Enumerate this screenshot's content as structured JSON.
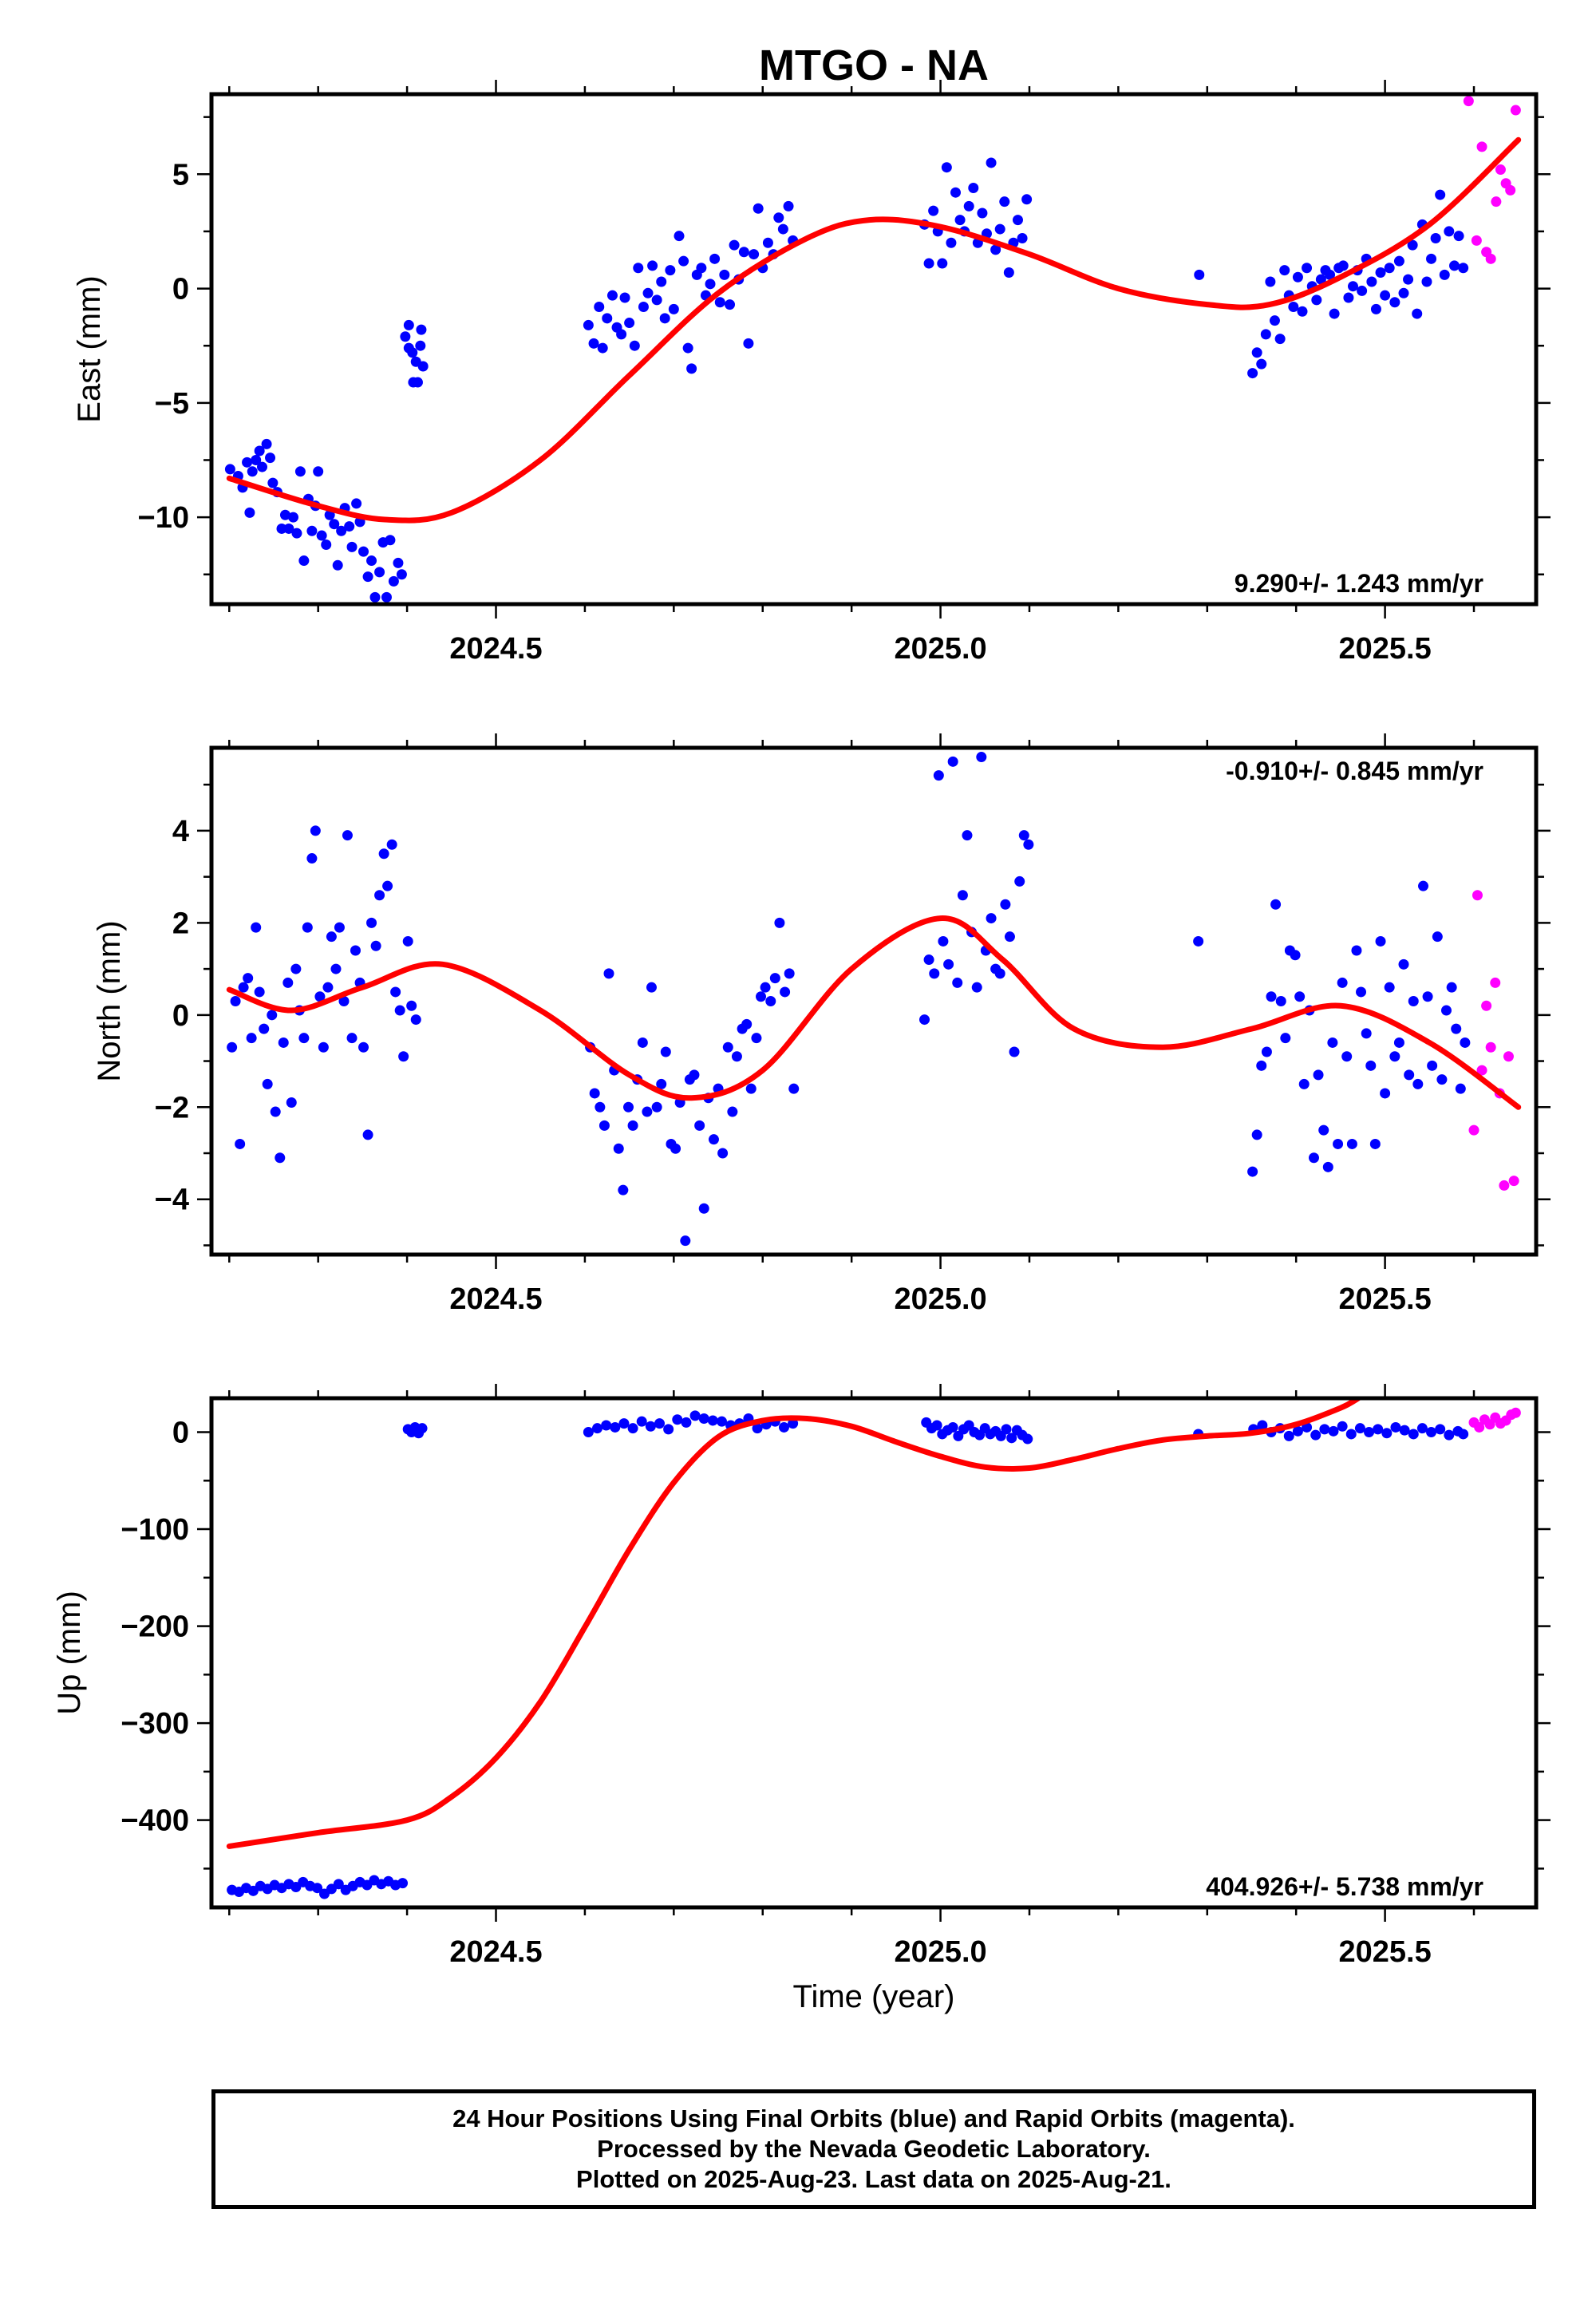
{
  "title": "MTGO - NA",
  "xlabel": "Time (year)",
  "footer": {
    "line1": "24 Hour Positions Using Final Orbits (blue) and Rapid Orbits (magenta).",
    "line2": "Processed by the Nevada Geodetic Laboratory.",
    "line3": "Plotted on 2025-Aug-23. Last data on 2025-Aug-21."
  },
  "colors": {
    "final": "#0000ff",
    "rapid": "#ff00ff",
    "fit": "#ff0000"
  },
  "chart_data": [
    {
      "type": "scatter",
      "name": "east",
      "ylabel": "East (mm)",
      "rate_text": "9.290+/- 1.243 mm/yr",
      "xlim": [
        2024.18,
        2025.67
      ],
      "ylim": [
        -13.8,
        8.5
      ],
      "xticks": [
        2024.5,
        2025.0,
        2025.5
      ],
      "xticklabels": [
        "2024.5",
        "2025.0",
        "2025.5"
      ],
      "yticks": [
        5,
        0,
        -5,
        -10
      ],
      "yticklabels": [
        "5",
        "0",
        "−5",
        "−10"
      ],
      "fit": {
        "x": [
          2024.2,
          2024.3,
          2024.375,
          2024.45,
          2024.55,
          2024.65,
          2024.75,
          2024.85,
          2024.92,
          2025.0,
          2025.1,
          2025.2,
          2025.3,
          2025.37,
          2025.45,
          2025.55,
          2025.65
        ],
        "y": [
          -8.3,
          -9.5,
          -10.1,
          -9.8,
          -7.5,
          -3.8,
          -0.2,
          2.2,
          3.0,
          2.7,
          1.5,
          0.0,
          -0.7,
          -0.7,
          0.5,
          2.8,
          6.5
        ]
      },
      "final_x": [
        2024.201,
        2024.21,
        2024.215,
        2024.22,
        2024.223,
        2024.226,
        2024.23,
        2024.234,
        2024.237,
        2024.242,
        2024.246,
        2024.249,
        2024.254,
        2024.259,
        2024.263,
        2024.267,
        2024.272,
        2024.276,
        2024.28,
        2024.284,
        2024.289,
        2024.293,
        2024.297,
        2024.3,
        2024.304,
        2024.309,
        2024.313,
        2024.318,
        2024.322,
        2024.326,
        2024.33,
        2024.335,
        2024.338,
        2024.343,
        2024.347,
        2024.351,
        2024.356,
        2024.36,
        2024.364,
        2024.369,
        2024.373,
        2024.377,
        2024.381,
        2024.385,
        2024.39,
        2024.394,
        2024.398,
        2024.402,
        2024.406,
        2024.41,
        2024.415,
        2024.418,
        2024.402,
        2024.407,
        2024.412,
        2024.416,
        2024.604,
        2024.61,
        2024.616,
        2024.62,
        2024.625,
        2024.631,
        2024.636,
        2024.641,
        2024.645,
        2024.65,
        2024.656,
        2024.66,
        2024.666,
        2024.671,
        2024.676,
        2024.681,
        2024.686,
        2024.69,
        2024.696,
        2024.7,
        2024.706,
        2024.711,
        2024.716,
        2024.72,
        2024.726,
        2024.731,
        2024.736,
        2024.741,
        2024.746,
        2024.752,
        2024.757,
        2024.763,
        2024.768,
        2024.773,
        2024.779,
        2024.784,
        2024.79,
        2024.795,
        2024.8,
        2024.806,
        2024.812,
        2024.818,
        2024.823,
        2024.829,
        2024.834,
        2024.982,
        2024.987,
        2024.992,
        2024.997,
        2025.002,
        2025.007,
        2025.012,
        2025.017,
        2025.022,
        2025.027,
        2025.032,
        2025.037,
        2025.042,
        2025.047,
        2025.052,
        2025.057,
        2025.062,
        2025.067,
        2025.072,
        2025.077,
        2025.082,
        2025.087,
        2025.092,
        2025.097,
        2025.291,
        2025.351,
        2025.356,
        2025.361,
        2025.366,
        2025.371,
        2025.376,
        2025.382,
        2025.387,
        2025.392,
        2025.397,
        2025.402,
        2025.407,
        2025.412,
        2025.418,
        2025.423,
        2025.428,
        2025.433,
        2025.438,
        2025.443,
        2025.448,
        2025.453,
        2025.459,
        2025.464,
        2025.469,
        2025.474,
        2025.479,
        2025.485,
        2025.49,
        2025.495,
        2025.5,
        2025.505,
        2025.511,
        2025.516,
        2025.521,
        2025.526,
        2025.531,
        2025.536,
        2025.542,
        2025.547,
        2025.552,
        2025.557,
        2025.562,
        2025.567,
        2025.572,
        2025.578,
        2025.583,
        2025.588
      ],
      "final_y": [
        -7.9,
        -8.2,
        -8.7,
        -7.6,
        -9.8,
        -8.0,
        -7.5,
        -7.1,
        -7.8,
        -6.8,
        -7.4,
        -8.5,
        -8.9,
        -10.5,
        -9.9,
        -10.5,
        -10.0,
        -10.7,
        -8.0,
        -11.9,
        -9.2,
        -10.6,
        -9.5,
        -8.0,
        -10.8,
        -11.2,
        -9.9,
        -10.3,
        -12.1,
        -10.6,
        -9.6,
        -10.4,
        -11.3,
        -9.4,
        -10.2,
        -11.5,
        -12.6,
        -11.9,
        -13.5,
        -12.4,
        -11.1,
        -13.5,
        -11.0,
        -12.8,
        -12.0,
        -12.5,
        -2.1,
        -1.6,
        -2.8,
        -3.2,
        -2.5,
        -3.4,
        -2.6,
        -4.1,
        -4.1,
        -1.8,
        -1.6,
        -2.4,
        -0.8,
        -2.6,
        -1.3,
        -0.3,
        -1.7,
        -2.0,
        -0.4,
        -1.5,
        -2.5,
        0.9,
        -0.8,
        -0.2,
        1.0,
        -0.5,
        0.3,
        -1.3,
        0.8,
        -0.9,
        2.3,
        1.2,
        -2.6,
        -3.5,
        0.6,
        0.9,
        -0.3,
        0.2,
        1.3,
        -0.6,
        0.6,
        -0.7,
        1.9,
        0.4,
        1.6,
        -2.4,
        1.5,
        3.5,
        0.9,
        2.0,
        1.5,
        3.1,
        2.6,
        3.6,
        2.1,
        2.8,
        1.1,
        3.4,
        2.5,
        1.1,
        5.3,
        2.0,
        4.2,
        3.0,
        2.5,
        3.6,
        4.4,
        2.0,
        3.3,
        2.4,
        5.5,
        1.7,
        2.6,
        3.8,
        0.7,
        2.0,
        3.0,
        2.2,
        3.9,
        0.6,
        -3.7,
        -2.8,
        -3.3,
        -2.0,
        0.3,
        -1.4,
        -2.2,
        0.8,
        -0.3,
        -0.8,
        0.5,
        -1.0,
        0.9,
        0.1,
        -0.5,
        0.4,
        0.8,
        0.6,
        -1.1,
        0.9,
        1.0,
        -0.4,
        0.1,
        0.8,
        -0.1,
        1.3,
        0.3,
        -0.9,
        0.7,
        -0.3,
        0.9,
        -0.6,
        1.2,
        -0.2,
        0.4,
        1.9,
        -1.1,
        2.8,
        0.3,
        1.3,
        2.2,
        4.1,
        0.6,
        2.5,
        1.0,
        2.3,
        0.9,
        2.4
      ],
      "rapid_x": [
        2025.594,
        2025.603,
        2025.609,
        2025.614,
        2025.619,
        2025.625,
        2025.63,
        2025.636,
        2025.641,
        2025.647
      ],
      "rapid_y": [
        8.2,
        2.1,
        6.2,
        1.6,
        1.3,
        3.8,
        5.2,
        4.6,
        4.3,
        7.8
      ]
    },
    {
      "type": "scatter",
      "name": "north",
      "ylabel": "North (mm)",
      "rate_text": "-0.910+/- 0.845 mm/yr",
      "xlim": [
        2024.18,
        2025.67
      ],
      "ylim": [
        -5.2,
        5.8
      ],
      "xticks": [
        2024.5,
        2025.0,
        2025.5
      ],
      "xticklabels": [
        "2024.5",
        "2025.0",
        "2025.5"
      ],
      "yticks": [
        4,
        2,
        0,
        -2,
        -4
      ],
      "yticklabels": [
        "4",
        "2",
        "0",
        "−2",
        "−4"
      ],
      "fit": {
        "x": [
          2024.2,
          2024.27,
          2024.35,
          2024.44,
          2024.55,
          2024.65,
          2024.72,
          2024.8,
          2024.9,
          2025.0,
          2025.07,
          2025.15,
          2025.25,
          2025.35,
          2025.45,
          2025.55,
          2025.65
        ],
        "y": [
          0.55,
          0.1,
          0.6,
          1.1,
          0.1,
          -1.3,
          -1.8,
          -1.2,
          1.0,
          2.1,
          1.2,
          -0.3,
          -0.7,
          -0.3,
          0.2,
          -0.6,
          -2.0
        ]
      },
      "final_x": [
        2024.203,
        2024.207,
        2024.212,
        2024.216,
        2024.221,
        2024.225,
        2024.23,
        2024.234,
        2024.239,
        2024.243,
        2024.248,
        2024.252,
        2024.257,
        2024.261,
        2024.266,
        2024.27,
        2024.275,
        2024.279,
        2024.284,
        2024.288,
        2024.293,
        2024.297,
        2024.302,
        2024.306,
        2024.311,
        2024.315,
        2024.32,
        2024.324,
        2024.329,
        2024.333,
        2024.338,
        2024.342,
        2024.347,
        2024.351,
        2024.356,
        2024.36,
        2024.365,
        2024.369,
        2024.374,
        2024.378,
        2024.383,
        2024.387,
        2024.392,
        2024.396,
        2024.401,
        2024.405,
        2024.41,
        2024.606,
        2024.611,
        2024.617,
        2024.622,
        2024.627,
        2024.633,
        2024.638,
        2024.643,
        2024.649,
        2024.654,
        2024.659,
        2024.665,
        2024.67,
        2024.675,
        2024.681,
        2024.686,
        2024.691,
        2024.697,
        2024.702,
        2024.707,
        2024.713,
        2024.718,
        2024.723,
        2024.729,
        2024.734,
        2024.739,
        2024.745,
        2024.75,
        2024.755,
        2024.761,
        2024.766,
        2024.771,
        2024.777,
        2024.782,
        2024.787,
        2024.793,
        2024.798,
        2024.803,
        2024.809,
        2024.814,
        2024.819,
        2024.825,
        2024.83,
        2024.835,
        2024.982,
        2024.987,
        2024.993,
        2024.998,
        2025.003,
        2025.009,
        2025.014,
        2025.019,
        2025.025,
        2025.03,
        2025.035,
        2025.041,
        2025.046,
        2025.051,
        2025.057,
        2025.062,
        2025.067,
        2025.073,
        2025.078,
        2025.083,
        2025.089,
        2025.094,
        2025.099,
        2025.29,
        2025.351,
        2025.356,
        2025.361,
        2025.367,
        2025.372,
        2025.377,
        2025.383,
        2025.388,
        2025.393,
        2025.399,
        2025.404,
        2025.409,
        2025.415,
        2025.42,
        2025.425,
        2025.431,
        2025.436,
        2025.441,
        2025.447,
        2025.452,
        2025.457,
        2025.463,
        2025.468,
        2025.473,
        2025.479,
        2025.484,
        2025.489,
        2025.495,
        2025.5,
        2025.505,
        2025.511,
        2025.516,
        2025.521,
        2025.527,
        2025.532,
        2025.537,
        2025.543,
        2025.548,
        2025.553,
        2025.559,
        2025.564,
        2025.569,
        2025.575,
        2025.58,
        2025.585,
        2025.59
      ],
      "final_y": [
        -0.7,
        0.3,
        -2.8,
        0.6,
        0.8,
        -0.5,
        1.9,
        0.5,
        -0.3,
        -1.5,
        0.0,
        -2.1,
        -3.1,
        -0.6,
        0.7,
        -1.9,
        1.0,
        0.1,
        -0.5,
        1.9,
        3.4,
        4.0,
        0.4,
        -0.7,
        0.6,
        1.7,
        1.0,
        1.9,
        0.3,
        3.9,
        -0.5,
        1.4,
        0.7,
        -0.7,
        -2.6,
        2.0,
        1.5,
        2.6,
        3.5,
        2.8,
        3.7,
        0.5,
        0.1,
        -0.9,
        1.6,
        0.2,
        -0.1,
        -0.7,
        -1.7,
        -2.0,
        -2.4,
        0.9,
        -1.2,
        -2.9,
        -3.8,
        -2.0,
        -2.4,
        -1.4,
        -0.6,
        -2.1,
        0.6,
        -2.0,
        -1.5,
        -0.8,
        -2.8,
        -2.9,
        -1.9,
        -4.9,
        -1.4,
        -1.3,
        -2.4,
        -4.2,
        -1.8,
        -2.7,
        -1.6,
        -3.0,
        -0.7,
        -2.1,
        -0.9,
        -0.3,
        -0.2,
        -1.6,
        -0.5,
        0.4,
        0.6,
        0.3,
        0.8,
        2.0,
        0.5,
        0.9,
        -1.6,
        -0.1,
        1.2,
        0.9,
        5.2,
        1.6,
        1.1,
        5.5,
        0.7,
        2.6,
        3.9,
        1.8,
        0.6,
        5.6,
        1.4,
        2.1,
        1.0,
        0.9,
        2.4,
        1.7,
        -0.8,
        2.9,
        3.9,
        3.7,
        1.6,
        -3.4,
        -2.6,
        -1.1,
        -0.8,
        0.4,
        2.4,
        0.3,
        -0.5,
        1.4,
        1.3,
        0.4,
        -1.5,
        0.1,
        -3.1,
        -1.3,
        -2.5,
        -3.3,
        -0.6,
        -2.8,
        0.7,
        -0.9,
        -2.8,
        1.4,
        0.5,
        -0.4,
        -1.1,
        -2.8,
        1.6,
        -1.7,
        0.6,
        -0.9,
        -0.6,
        1.1,
        -1.3,
        0.3,
        -1.5,
        2.8,
        0.4,
        -1.1,
        1.7,
        -1.4,
        0.1,
        0.6,
        -0.3,
        -1.6,
        -0.6,
        1.2
      ],
      "rapid_x": [
        2025.6,
        2025.604,
        2025.609,
        2025.614,
        2025.619,
        2025.624,
        2025.629,
        2025.634,
        2025.639,
        2025.645
      ],
      "rapid_y": [
        -2.5,
        2.6,
        -1.2,
        0.2,
        -0.7,
        0.7,
        -1.7,
        -3.7,
        -0.9,
        -3.6
      ]
    },
    {
      "type": "scatter",
      "name": "up",
      "ylabel": "Up (mm)",
      "rate_text": "404.926+/- 5.738 mm/yr",
      "xlim": [
        2024.18,
        2025.67
      ],
      "ylim": [
        -490,
        35
      ],
      "xticks": [
        2024.5,
        2025.0,
        2025.5
      ],
      "xticklabels": [
        "2024.5",
        "2025.0",
        "2025.5"
      ],
      "yticks": [
        0,
        -100,
        -200,
        -300,
        -400
      ],
      "yticklabels": [
        "0",
        "−100",
        "−200",
        "−300",
        "−400"
      ],
      "fit": {
        "x": [
          2024.2,
          2024.3,
          2024.4,
          2024.45,
          2024.5,
          2024.55,
          2024.6,
          2024.65,
          2024.7,
          2024.75,
          2024.8,
          2024.85,
          2024.9,
          2024.95,
          2025.0,
          2025.05,
          2025.1,
          2025.15,
          2025.2,
          2025.25,
          2025.3,
          2025.35,
          2025.4,
          2025.45,
          2025.47
        ],
        "y": [
          -427,
          -413,
          -400,
          -376,
          -336,
          -278,
          -201,
          -121,
          -52,
          -5,
          12,
          14,
          6,
          -10,
          -25,
          -36,
          -37,
          -28,
          -17,
          -8,
          -4,
          -1,
          8,
          25,
          35
        ]
      },
      "final_x": [
        2024.203,
        2024.211,
        2024.219,
        2024.227,
        2024.235,
        2024.243,
        2024.251,
        2024.259,
        2024.267,
        2024.275,
        2024.283,
        2024.291,
        2024.299,
        2024.307,
        2024.315,
        2024.323,
        2024.331,
        2024.339,
        2024.347,
        2024.355,
        2024.363,
        2024.371,
        2024.379,
        2024.387,
        2024.395,
        2024.401,
        2024.405,
        2024.409,
        2024.413,
        2024.417,
        2024.604,
        2024.614,
        2024.624,
        2024.634,
        2024.644,
        2024.654,
        2024.664,
        2024.674,
        2024.684,
        2024.694,
        2024.704,
        2024.714,
        2024.724,
        2024.734,
        2024.744,
        2024.754,
        2024.764,
        2024.774,
        2024.784,
        2024.794,
        2024.804,
        2024.814,
        2024.824,
        2024.834,
        2024.984,
        2024.99,
        2024.996,
        2025.002,
        2025.008,
        2025.014,
        2025.02,
        2025.026,
        2025.032,
        2025.038,
        2025.044,
        2025.05,
        2025.056,
        2025.062,
        2025.068,
        2025.074,
        2025.08,
        2025.086,
        2025.092,
        2025.098,
        2025.29,
        2025.352,
        2025.362,
        2025.372,
        2025.382,
        2025.392,
        2025.402,
        2025.412,
        2025.422,
        2025.432,
        2025.442,
        2025.452,
        2025.462,
        2025.472,
        2025.482,
        2025.492,
        2025.502,
        2025.512,
        2025.522,
        2025.532,
        2025.542,
        2025.552,
        2025.562,
        2025.572,
        2025.582,
        2025.588
      ],
      "final_y": [
        -472,
        -474,
        -470,
        -473,
        -468,
        -471,
        -467,
        -470,
        -466,
        -469,
        -464,
        -468,
        -470,
        -476,
        -471,
        -466,
        -472,
        -468,
        -464,
        -467,
        -462,
        -466,
        -463,
        -467,
        -465,
        3,
        0,
        5,
        -1,
        4,
        0,
        4,
        7,
        5,
        9,
        4,
        11,
        6,
        9,
        3,
        13,
        10,
        17,
        14,
        12,
        11,
        7,
        9,
        14,
        4,
        8,
        11,
        5,
        9,
        10,
        4,
        7,
        -2,
        2,
        5,
        -4,
        3,
        7,
        0,
        -3,
        4,
        -2,
        1,
        -4,
        3,
        -6,
        2,
        -3,
        -7,
        -2,
        3,
        7,
        0,
        4,
        -4,
        1,
        5,
        -3,
        3,
        1,
        6,
        -2,
        4,
        0,
        3,
        -1,
        5,
        2,
        -2,
        4,
        0,
        3,
        -3,
        1,
        -2
      ],
      "rapid_x": [
        2025.6,
        2025.606,
        2025.612,
        2025.618,
        2025.624,
        2025.63,
        2025.636,
        2025.642,
        2025.647
      ],
      "rapid_y": [
        10,
        5,
        13,
        8,
        15,
        9,
        12,
        18,
        20
      ]
    }
  ]
}
